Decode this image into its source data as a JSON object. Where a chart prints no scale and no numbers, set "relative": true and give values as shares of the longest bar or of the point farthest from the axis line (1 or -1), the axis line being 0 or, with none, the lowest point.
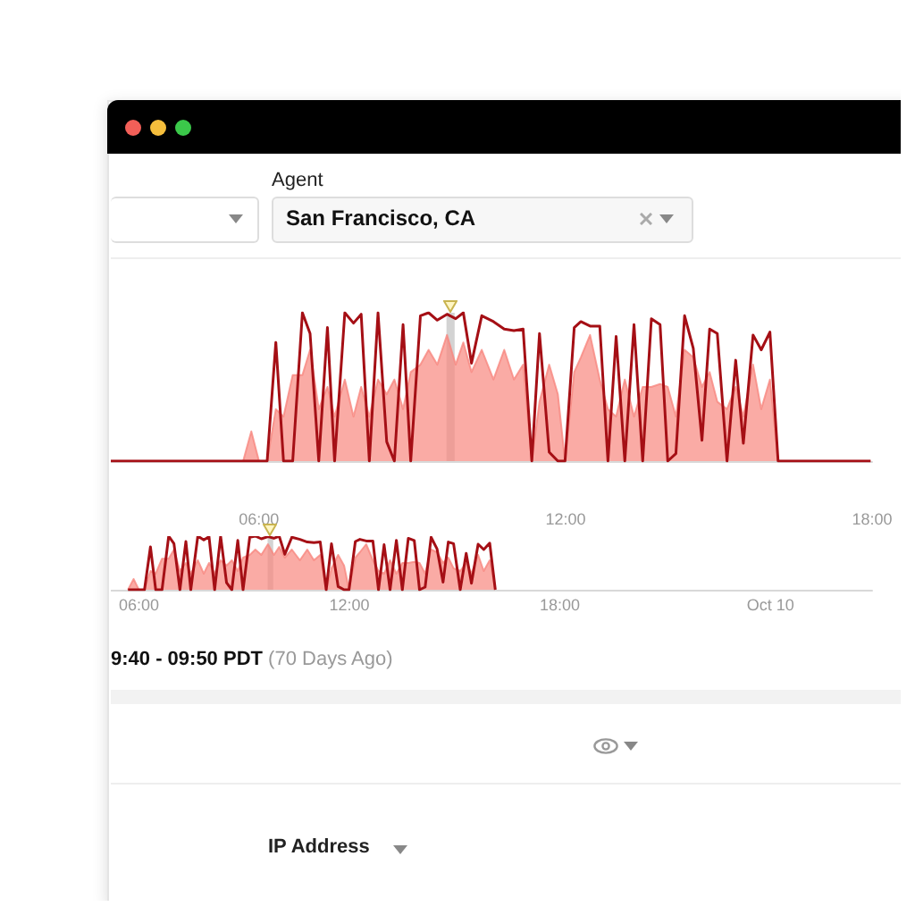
{
  "chart_data": [
    {
      "type": "area",
      "relative": true,
      "marker": "none",
      "tick_labels": "x",
      "x": [
        3.1,
        5.69,
        5.85,
        6.0,
        6.16,
        6.33,
        6.48,
        6.66,
        6.85,
        7.0,
        7.17,
        7.34,
        7.48,
        7.68,
        7.85,
        8.0,
        8.16,
        8.33,
        8.5,
        8.65,
        8.82,
        8.97,
        9.16,
        9.32,
        9.49,
        9.68,
        9.85,
        10.0,
        10.16,
        10.36,
        10.59,
        10.8,
        10.99,
        11.17,
        11.34,
        11.49,
        11.68,
        11.85,
        11.99,
        12.17,
        12.3,
        12.48,
        12.67,
        12.83,
        12.99,
        13.16,
        13.34,
        13.51,
        13.68,
        13.85,
        14.0,
        14.16,
        14.33,
        14.5,
        14.67,
        14.82,
        14.97,
        15.16,
        15.33,
        15.48,
        15.67,
        15.83,
        16.0,
        16.16,
        17.97
      ],
      "series": [
        {
          "color": "#f8877f",
          "values": [
            0,
            0,
            0.2,
            0,
            0,
            0.35,
            0.3,
            0.58,
            0.58,
            0.75,
            0.35,
            0.5,
            0.3,
            0.55,
            0.3,
            0.5,
            0.3,
            0.55,
            0.45,
            0.55,
            0.35,
            0.6,
            0.65,
            0.75,
            0.65,
            0.85,
            0.65,
            0.8,
            0.6,
            0.75,
            0.55,
            0.75,
            0.55,
            0.65,
            0,
            0.4,
            0.65,
            0.45,
            0,
            0.6,
            0.7,
            0.85,
            0.55,
            0.35,
            0.3,
            0.55,
            0.3,
            0.5,
            0.5,
            0.52,
            0.5,
            0.3,
            0.75,
            0.7,
            0.5,
            0.6,
            0.4,
            0.35,
            0.5,
            0.3,
            0.65,
            0.35,
            0.55,
            0,
            0
          ]
        },
        {
          "type": "line",
          "color": "#a50f15",
          "values": [
            0,
            0,
            0,
            0,
            0,
            0.8,
            0,
            0,
            1,
            0.86,
            0,
            0.9,
            0,
            1,
            0.93,
            0.99,
            0,
            1,
            0.13,
            0,
            0.92,
            0,
            0.98,
            1,
            0.95,
            0.99,
            0.96,
            1,
            0.66,
            0.98,
            0.94,
            0.89,
            0.88,
            0.89,
            0,
            0.86,
            0.06,
            0,
            0,
            0.9,
            0.94,
            0.91,
            0.91,
            0,
            0.84,
            0,
            0.92,
            0,
            0.96,
            0.92,
            0,
            0.05,
            0.98,
            0.76,
            0.14,
            0.89,
            0.86,
            0,
            0.68,
            0.12,
            0.85,
            0.75,
            0.87,
            0,
            0
          ]
        }
      ],
      "xlim": [
        3.1,
        18.0
      ],
      "xticks": [
        {
          "value": 6,
          "label": "06:00"
        },
        {
          "value": 12,
          "label": "12:00"
        },
        {
          "value": 18,
          "label": "18:00"
        }
      ],
      "bands": [
        {
          "axis": "x",
          "from": 9.67,
          "to": 9.83,
          "color": "#c8c8c8"
        }
      ],
      "annotations": [
        "Agent",
        "San Francisco, CA",
        "9:40 - 09:50 PDT",
        "(70 Days Ago)",
        "IP Address"
      ]
    },
    {
      "type": "area",
      "relative": true,
      "marker": "none",
      "tick_labels": "x",
      "x": [
        5.69,
        5.85,
        6.0,
        6.16,
        6.33,
        6.48,
        6.66,
        6.85,
        7.0,
        7.17,
        7.34,
        7.48,
        7.68,
        7.85,
        8.0,
        8.16,
        8.33,
        8.5,
        8.65,
        8.82,
        8.97,
        9.16,
        9.32,
        9.49,
        9.68,
        9.85,
        10.0,
        10.16,
        10.36,
        10.59,
        10.8,
        10.99,
        11.17,
        11.34,
        11.49,
        11.68,
        11.85,
        11.99,
        12.17,
        12.3,
        12.48,
        12.67,
        12.83,
        12.99,
        13.16,
        13.34,
        13.51,
        13.68,
        13.85,
        14.0,
        14.16,
        14.33,
        14.5,
        14.67,
        14.82,
        14.97,
        15.16,
        15.33,
        15.48,
        15.67,
        15.83,
        16.0,
        16.16
      ],
      "series": [
        {
          "color": "#f8877f",
          "values": [
            0,
            0.2,
            0,
            0,
            0.35,
            0.3,
            0.58,
            0.58,
            0.75,
            0.35,
            0.5,
            0.3,
            0.55,
            0.3,
            0.5,
            0.3,
            0.55,
            0.45,
            0.55,
            0.35,
            0.6,
            0.65,
            0.75,
            0.65,
            0.85,
            0.65,
            0.8,
            0.6,
            0.75,
            0.55,
            0.75,
            0.55,
            0.65,
            0,
            0.4,
            0.65,
            0.45,
            0,
            0.6,
            0.7,
            0.85,
            0.55,
            0.35,
            0.3,
            0.55,
            0.3,
            0.5,
            0.5,
            0.52,
            0.5,
            0.3,
            0.75,
            0.7,
            0.5,
            0.6,
            0.4,
            0.35,
            0.5,
            0.3,
            0.65,
            0.35,
            0.55,
            0
          ]
        },
        {
          "type": "line",
          "color": "#a50f15",
          "values": [
            0,
            0,
            0,
            0,
            0.8,
            0,
            0,
            1,
            0.86,
            0,
            0.9,
            0,
            1,
            0.93,
            0.99,
            0,
            1,
            0.13,
            0,
            0.92,
            0,
            0.98,
            1,
            0.95,
            0.99,
            0.96,
            1,
            0.66,
            0.98,
            0.94,
            0.89,
            0.88,
            0.89,
            0,
            0.86,
            0.06,
            0,
            0,
            0.9,
            0.94,
            0.91,
            0.91,
            0,
            0.84,
            0,
            0.92,
            0,
            0.96,
            0.92,
            0,
            0.05,
            0.98,
            0.76,
            0.14,
            0.89,
            0.86,
            0,
            0.68,
            0.12,
            0.85,
            0.75,
            0.87,
            0
          ]
        }
      ],
      "xlim": [
        5.2,
        26.9
      ],
      "xticks": [
        {
          "value": 6,
          "label": "06:00"
        },
        {
          "value": 12,
          "label": "12:00"
        },
        {
          "value": 18,
          "label": "18:00"
        },
        {
          "value": 24,
          "label": "Oct 10"
        }
      ],
      "bands": [
        {
          "axis": "x",
          "from": 9.67,
          "to": 9.83,
          "color": "#c8c8c8"
        }
      ]
    }
  ]
}
